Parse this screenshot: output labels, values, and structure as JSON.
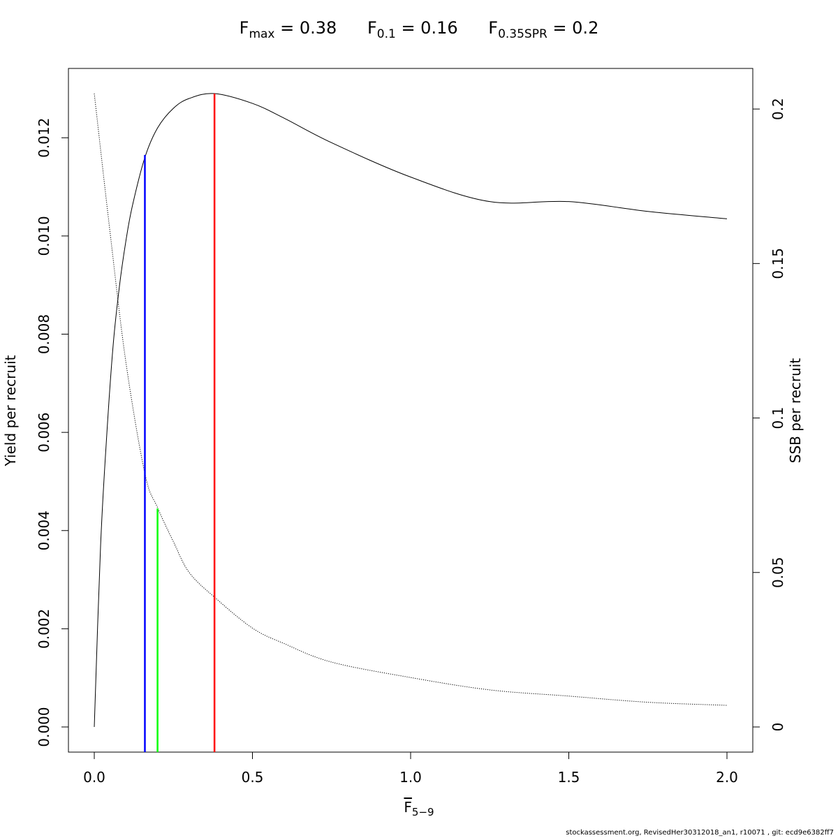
{
  "title": {
    "items": [
      {
        "base": "F",
        "sub": "max",
        "rest": " = 0.38"
      },
      {
        "base": "F",
        "sub": "0.1",
        "rest": " = 0.16"
      },
      {
        "base": "F",
        "sub": "0.35SPR",
        "rest": " = 0.2"
      }
    ]
  },
  "footer": "stockassessment.org, RevisedHer30312018_an1, r10071 , git: ecd9e6382ff7",
  "chart_data": {
    "type": "line",
    "xlabel": {
      "base": "F",
      "sub": "5−9"
    },
    "ylabel_left": "Yield per recruit",
    "ylabel_right": "SSB per recruit",
    "xlim": [
      0,
      2
    ],
    "ylim_left": [
      0,
      0.0129
    ],
    "ylim_right": [
      0,
      0.205
    ],
    "x_ticks": [
      "0.0",
      "0.5",
      "1.0",
      "1.5",
      "2.0"
    ],
    "x_tick_values": [
      0,
      0.5,
      1.0,
      1.5,
      2.0
    ],
    "y_left_ticks": [
      "0.000",
      "0.002",
      "0.004",
      "0.006",
      "0.008",
      "0.010",
      "0.012"
    ],
    "y_left_tick_values": [
      0,
      0.002,
      0.004,
      0.006,
      0.008,
      0.01,
      0.012
    ],
    "y_right_ticks": [
      "0",
      "0.05",
      "0.1",
      "0.15",
      "0.2"
    ],
    "y_right_tick_values": [
      0,
      0.05,
      0.1,
      0.15,
      0.2
    ],
    "series": [
      {
        "name": "Yield per recruit",
        "axis": "left",
        "style": "solid",
        "color": "#000000",
        "x": [
          0,
          0.02,
          0.04,
          0.06,
          0.08,
          0.1,
          0.12,
          0.16,
          0.2,
          0.25,
          0.3,
          0.38,
          0.5,
          0.6,
          0.75,
          1.0,
          1.25,
          1.5,
          1.75,
          2.0
        ],
        "y": [
          0,
          0.0037,
          0.006,
          0.0078,
          0.009,
          0.0099,
          0.0106,
          0.0116,
          0.0122,
          0.0126,
          0.0128,
          0.0129,
          0.0127,
          0.0124,
          0.0119,
          0.0112,
          0.0107,
          0.0107,
          0.0105,
          0.01035
        ]
      },
      {
        "name": "SSB per recruit",
        "axis": "right",
        "style": "dotted",
        "color": "#000000",
        "x": [
          0,
          0.05,
          0.1,
          0.16,
          0.2,
          0.25,
          0.3,
          0.38,
          0.5,
          0.6,
          0.75,
          1.0,
          1.25,
          1.5,
          1.75,
          2.0
        ],
        "y": [
          0.205,
          0.16,
          0.118,
          0.082,
          0.071,
          0.06,
          0.05,
          0.042,
          0.032,
          0.027,
          0.021,
          0.016,
          0.012,
          0.01,
          0.008,
          0.007
        ]
      }
    ],
    "reference_lines": [
      {
        "name": "F0.1",
        "x": 0.16,
        "color": "#0000ff",
        "y_top": 0.01165
      },
      {
        "name": "F0.35SPR",
        "x": 0.2,
        "color": "#00ff00",
        "y_top": 0.00445
      },
      {
        "name": "Fmax",
        "x": 0.38,
        "color": "#ff0000",
        "y_top": 0.0129
      }
    ]
  }
}
